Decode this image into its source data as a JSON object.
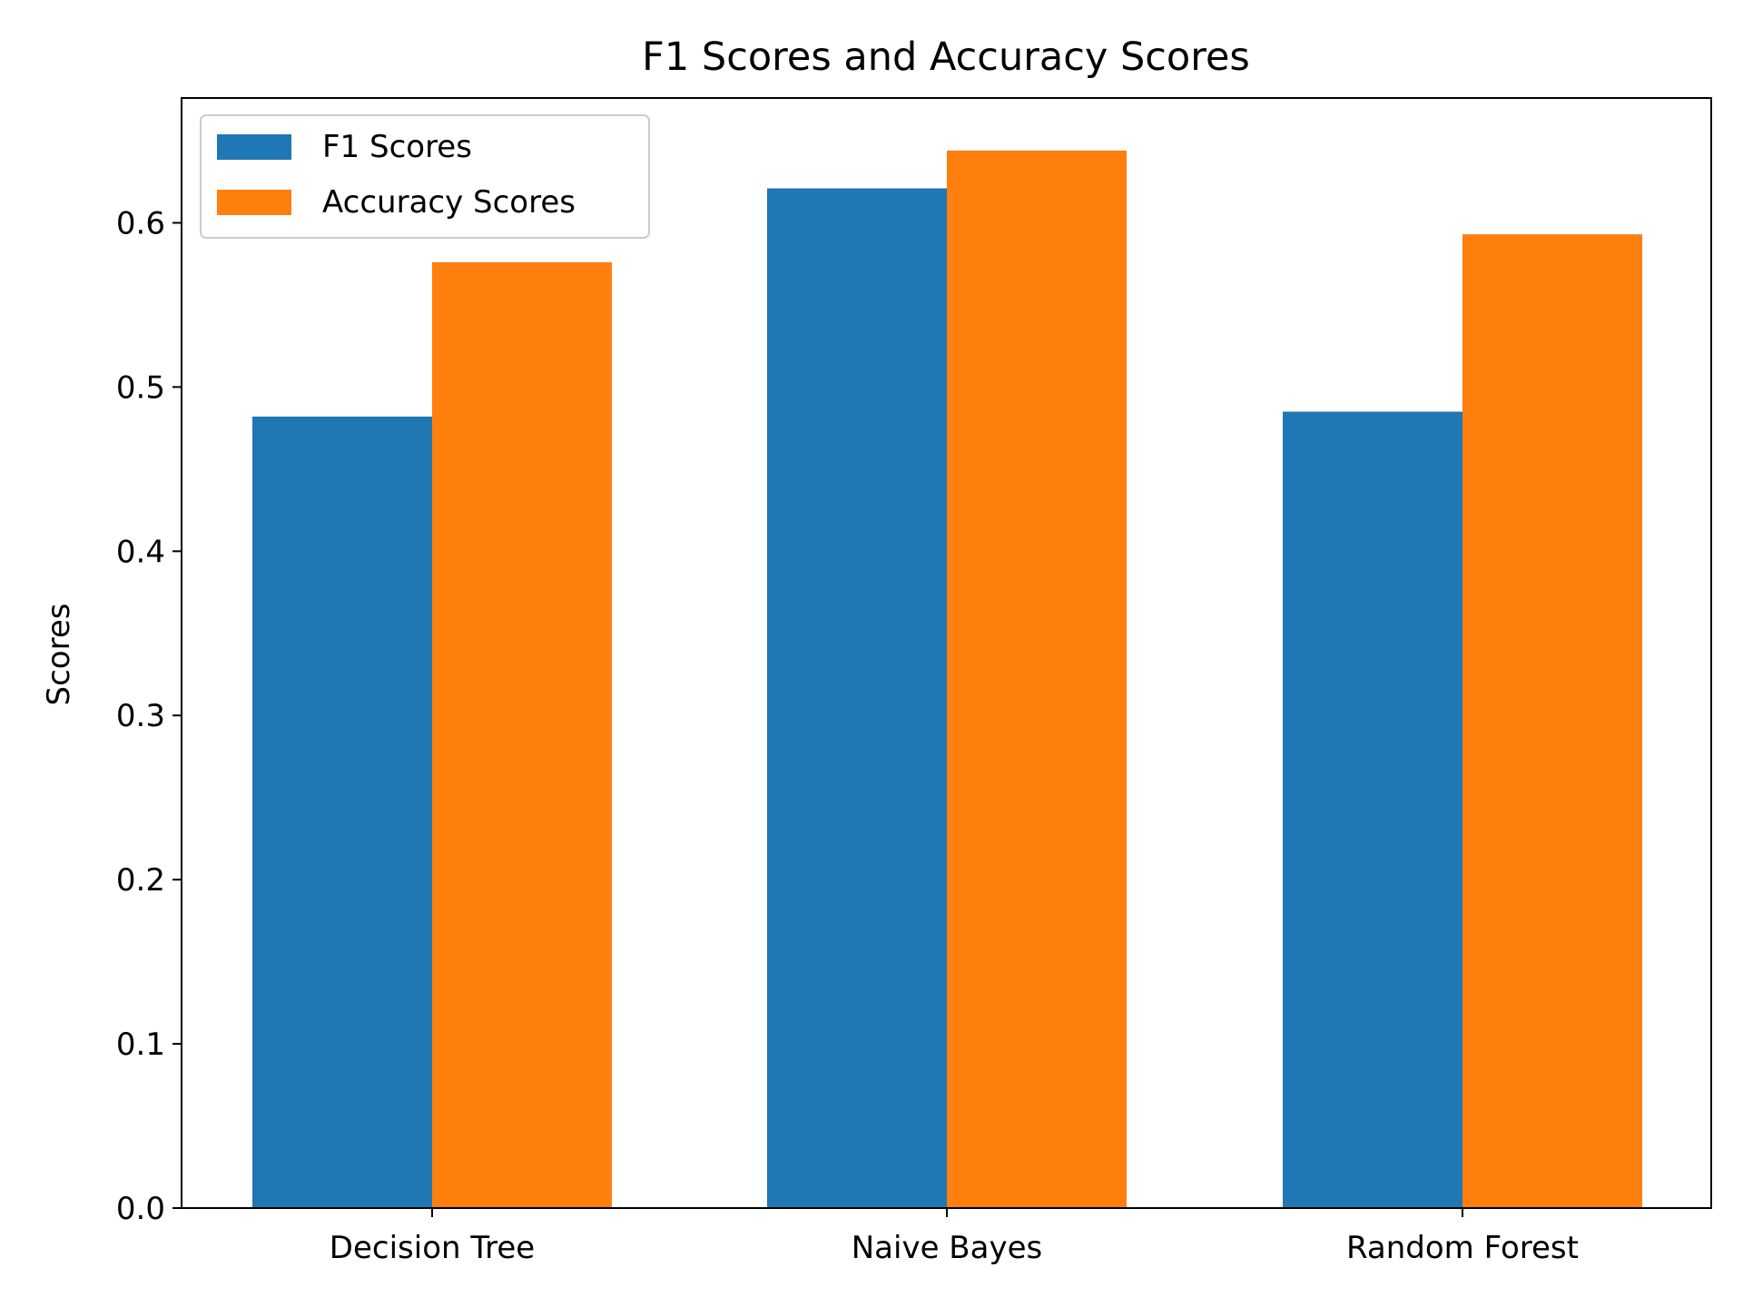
{
  "chart_data": {
    "type": "bar",
    "title": "F1 Scores and Accuracy Scores",
    "xlabel": "",
    "ylabel": "Scores",
    "categories": [
      "Decision Tree",
      "Naive Bayes",
      "Random Forest"
    ],
    "series": [
      {
        "name": "F1 Scores",
        "color": "#1f77b4",
        "values": [
          0.482,
          0.621,
          0.485
        ]
      },
      {
        "name": "Accuracy Scores",
        "color": "#ff7f0e",
        "values": [
          0.576,
          0.644,
          0.593
        ]
      }
    ],
    "ylim": [
      0,
      0.676
    ],
    "yticks": [
      "0.0",
      "0.1",
      "0.2",
      "0.3",
      "0.4",
      "0.5",
      "0.6"
    ],
    "grid": false,
    "legend_position": "upper-left"
  }
}
